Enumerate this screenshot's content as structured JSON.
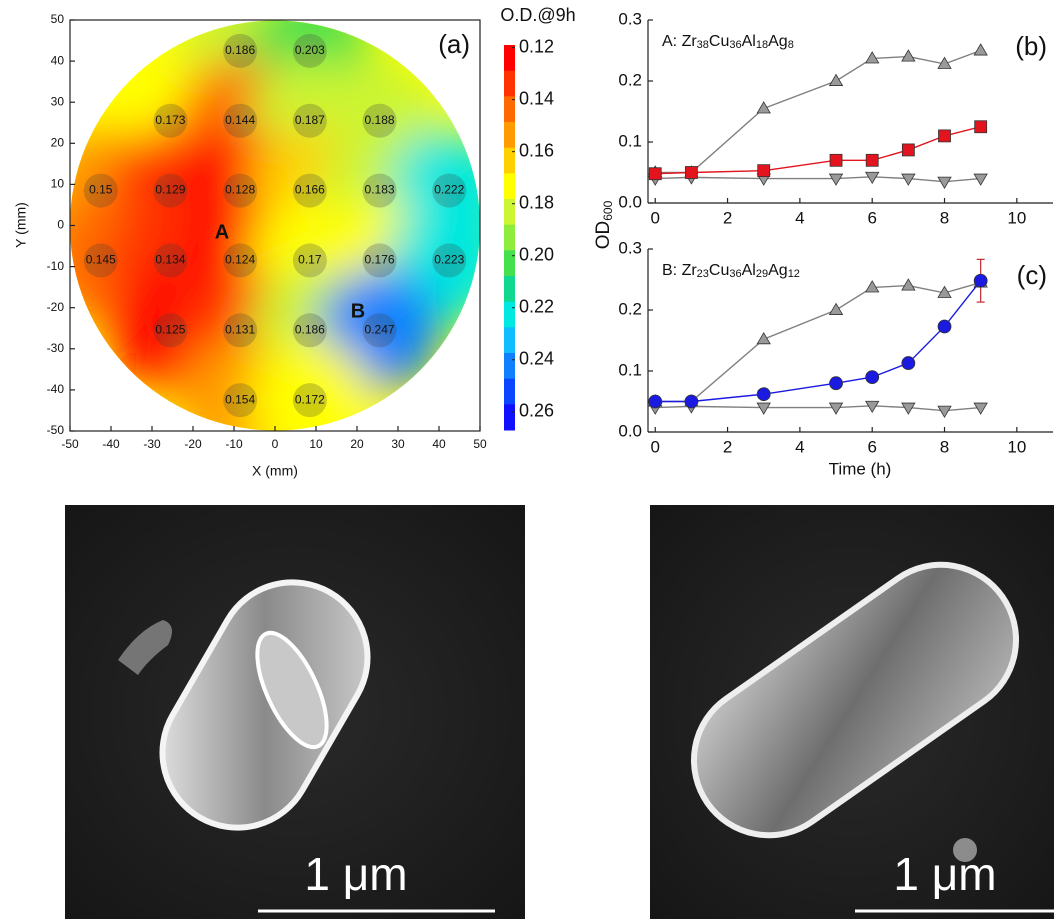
{
  "chart_data": [
    {
      "type": "contour",
      "panel_label": "(a)",
      "x_label": "X (mm)",
      "y_label": "Y (mm)",
      "xlim": [
        -50,
        50
      ],
      "ylim": [
        -50,
        50
      ],
      "xticks": [
        -50,
        -40,
        -30,
        -20,
        -10,
        0,
        10,
        20,
        30,
        40,
        50
      ],
      "yticks": [
        -50,
        -40,
        -30,
        -20,
        -10,
        0,
        10,
        20,
        30,
        40,
        50
      ],
      "colorbar_title": "O.D.@9h",
      "clim": [
        0.119,
        0.267
      ],
      "cticks": [
        0.12,
        0.14,
        0.16,
        0.18,
        {
          "value": 0.2,
          "label": "0.20"
        },
        0.22,
        0.24,
        0.26
      ],
      "colormap": [
        "#ff0000",
        "#ff3300",
        "#ff6a00",
        "#ff9a00",
        "#ffd000",
        "#ffff00",
        "#ccf533",
        "#8eec3c",
        "#44e04e",
        "#10d890",
        "#00e8e0",
        "#10bdff",
        "#1080ff",
        "#0a45ff",
        "#1010ff"
      ],
      "annotations": [
        "A",
        "B"
      ],
      "points": [
        {
          "x": -8.5,
          "y": 42.5,
          "value": 0.186
        },
        {
          "x": 8.5,
          "y": 42.5,
          "value": 0.203
        },
        {
          "x": -25.5,
          "y": 25.5,
          "value": 0.173
        },
        {
          "x": -8.5,
          "y": 25.5,
          "value": 0.144
        },
        {
          "x": 8.5,
          "y": 25.5,
          "value": 0.187
        },
        {
          "x": 25.5,
          "y": 25.5,
          "value": 0.188
        },
        {
          "x": -42.5,
          "y": 8.5,
          "value": 0.15
        },
        {
          "x": -25.5,
          "y": 8.5,
          "value": 0.129
        },
        {
          "x": -8.5,
          "y": 8.5,
          "value": 0.128
        },
        {
          "x": 8.5,
          "y": 8.5,
          "value": 0.166
        },
        {
          "x": 25.5,
          "y": 8.5,
          "value": 0.183
        },
        {
          "x": 42.5,
          "y": 8.5,
          "value": 0.222
        },
        {
          "x": -42.5,
          "y": -8.5,
          "value": 0.145
        },
        {
          "x": -25.5,
          "y": -8.5,
          "value": 0.134
        },
        {
          "x": -8.5,
          "y": -8.5,
          "value": 0.124
        },
        {
          "x": 8.5,
          "y": -8.5,
          "value": 0.17
        },
        {
          "x": 25.5,
          "y": -8.5,
          "value": 0.176
        },
        {
          "x": 42.5,
          "y": -8.5,
          "value": 0.223
        },
        {
          "x": -25.5,
          "y": -25.5,
          "value": 0.125
        },
        {
          "x": -8.5,
          "y": -25.5,
          "value": 0.131
        },
        {
          "x": 8.5,
          "y": -25.5,
          "value": 0.186
        },
        {
          "x": 25.5,
          "y": -25.5,
          "value": 0.247
        },
        {
          "x": -8.5,
          "y": -42.5,
          "value": 0.154
        },
        {
          "x": 8.5,
          "y": -42.5,
          "value": 0.172
        }
      ]
    },
    {
      "type": "line",
      "panel_label": "(b)",
      "annotation": "A: Zr38Cu36Al18Ag8",
      "xlim": [
        -0.2,
        11
      ],
      "ylim": [
        0,
        0.3
      ],
      "xticks": [
        0,
        2,
        4,
        6,
        8,
        10
      ],
      "yticks": [
        {
          "value": 0,
          "label": "0.0"
        },
        0.1,
        0.2,
        0.3
      ],
      "x": [
        0,
        1,
        3,
        5,
        6,
        7,
        8,
        9
      ],
      "series": [
        {
          "color": "#808080",
          "marker": "triangle-up",
          "values": [
            0.05,
            0.05,
            0.155,
            0.2,
            0.237,
            0.24,
            0.228,
            0.25
          ]
        },
        {
          "color": "#808080",
          "marker": "triangle-down",
          "values": [
            0.04,
            0.042,
            0.04,
            0.04,
            0.043,
            0.04,
            0.035,
            0.04
          ]
        },
        {
          "color": "#e3141e",
          "marker": "square",
          "values": [
            0.048,
            0.05,
            0.053,
            0.07,
            0.07,
            0.087,
            0.11,
            0.125
          ]
        }
      ]
    },
    {
      "type": "line",
      "panel_label": "(c)",
      "annotation": "B: Zr23Cu36Al29Ag12",
      "x_label": "Time (h)",
      "xlim": [
        -0.2,
        11
      ],
      "ylim": [
        0,
        0.3
      ],
      "xticks": [
        0,
        2,
        4,
        6,
        8,
        10
      ],
      "yticks": [
        {
          "value": 0,
          "label": "0.0"
        },
        0.1,
        0.2,
        0.3
      ],
      "x": [
        0,
        1,
        3,
        5,
        6,
        7,
        8,
        9
      ],
      "series": [
        {
          "color": "#808080",
          "marker": "triangle-up",
          "values": [
            0.05,
            0.05,
            0.152,
            0.2,
            0.237,
            0.24,
            0.228,
            0.245
          ]
        },
        {
          "color": "#808080",
          "marker": "triangle-down",
          "values": [
            0.04,
            0.042,
            0.04,
            0.04,
            0.043,
            0.04,
            0.035,
            0.04
          ]
        },
        {
          "color": "#1a1ae0",
          "marker": "circle",
          "values": [
            0.05,
            0.05,
            0.062,
            0.08,
            0.09,
            0.113,
            0.173,
            0.248
          ],
          "errors": [
            null,
            null,
            null,
            null,
            null,
            null,
            null,
            0.035
          ],
          "error_color": "#c0282d"
        }
      ]
    }
  ],
  "shared_y_label": {
    "text": "OD",
    "subscript": "600"
  },
  "images": [
    {
      "scale_label": "1 μm"
    },
    {
      "scale_label": "1 μm"
    }
  ]
}
